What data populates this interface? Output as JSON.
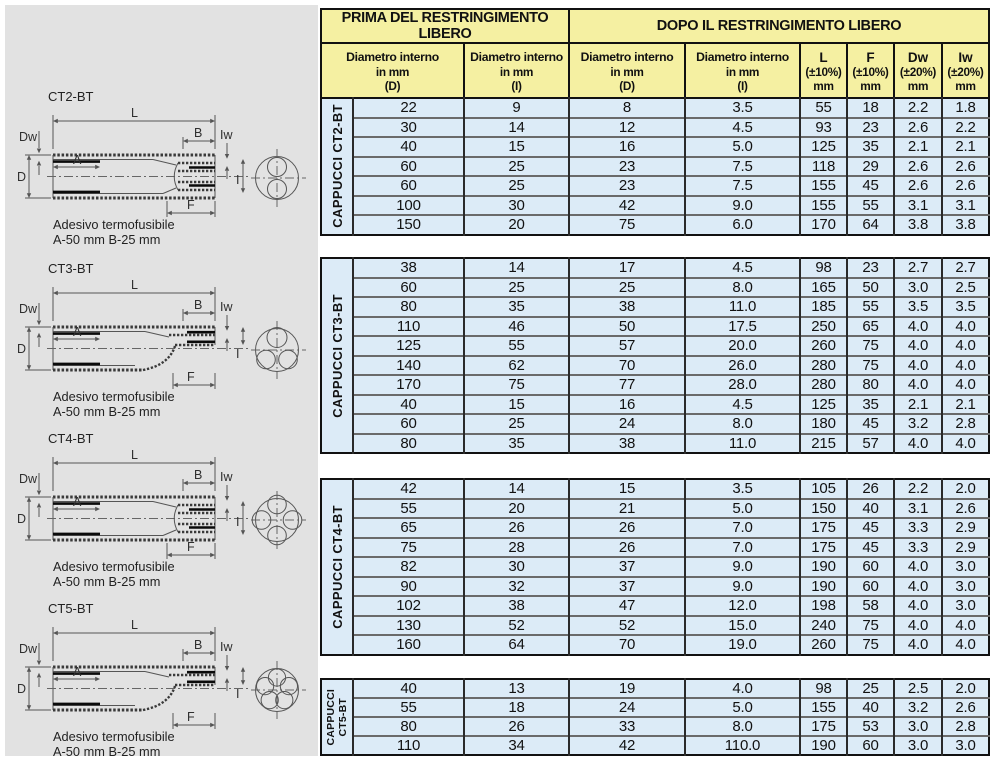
{
  "panel": {
    "bg": "#e2e2e2",
    "caption_line1": "Adesivo termofusibile",
    "caption_line2": "A-50 mm B-25 mm",
    "dims": {
      "L": "L",
      "Dw": "Dw",
      "A": "A",
      "B": "B",
      "Iw": "Iw",
      "D": "D",
      "I": "I",
      "F": "F"
    },
    "diagrams": [
      {
        "label": "CT2-BT",
        "cores": 2
      },
      {
        "label": "CT3-BT",
        "cores": 3
      },
      {
        "label": "CT4-BT",
        "cores": 4
      },
      {
        "label": "CT5-BT",
        "cores": 5
      }
    ]
  },
  "table": {
    "colors": {
      "header_bg": "#f5f0a2",
      "cell_bg": "#dcebf7",
      "row_line": "#6a6a6a",
      "border": "#111111"
    },
    "prima_label": "PRIMA DEL RESTRINGIMENTO LIBERO",
    "dopo_label": "DOPO IL RESTRINGIMENTO LIBERO",
    "columns": [
      {
        "l1": "Diametro interno",
        "l2": "in mm",
        "l3": "(D)"
      },
      {
        "l1": "Diametro interno",
        "l2": "in mm",
        "l3": "(I)"
      },
      {
        "l1": "Diametro interno",
        "l2": "in mm",
        "l3": "(D)"
      },
      {
        "l1": "Diametro interno",
        "l2": "in mm",
        "l3": "(I)"
      },
      {
        "l1": "L",
        "l2": "(±10%)",
        "l3": "mm"
      },
      {
        "l1": "F",
        "l2": "(±10%)",
        "l3": "mm"
      },
      {
        "l1": "Dw",
        "l2": "(±20%)",
        "l3": "mm"
      },
      {
        "l1": "Iw",
        "l2": "(±20%)",
        "l3": "mm"
      }
    ],
    "groups": [
      {
        "label_lines": [
          "CAPPUCCI CT2-BT"
        ],
        "rows": [
          [
            "22",
            "9",
            "8",
            "3.5",
            "55",
            "18",
            "2.2",
            "1.8"
          ],
          [
            "30",
            "14",
            "12",
            "4.5",
            "93",
            "23",
            "2.6",
            "2.2"
          ],
          [
            "40",
            "15",
            "16",
            "5.0",
            "125",
            "35",
            "2.1",
            "2.1"
          ],
          [
            "60",
            "25",
            "23",
            "7.5",
            "118",
            "29",
            "2.6",
            "2.6"
          ],
          [
            "60",
            "25",
            "23",
            "7.5",
            "155",
            "45",
            "2.6",
            "2.6"
          ],
          [
            "100",
            "30",
            "42",
            "9.0",
            "155",
            "55",
            "3.1",
            "3.1"
          ],
          [
            "150",
            "20",
            "75",
            "6.0",
            "170",
            "64",
            "3.8",
            "3.8"
          ]
        ]
      },
      {
        "label_lines": [
          "CAPPUCCI CT3-BT"
        ],
        "rows": [
          [
            "38",
            "14",
            "17",
            "4.5",
            "98",
            "23",
            "2.7",
            "2.7"
          ],
          [
            "60",
            "25",
            "25",
            "8.0",
            "165",
            "50",
            "3.0",
            "2.5"
          ],
          [
            "80",
            "35",
            "38",
            "11.0",
            "185",
            "55",
            "3.5",
            "3.5"
          ],
          [
            "110",
            "46",
            "50",
            "17.5",
            "250",
            "65",
            "4.0",
            "4.0"
          ],
          [
            "125",
            "55",
            "57",
            "20.0",
            "260",
            "75",
            "4.0",
            "4.0"
          ],
          [
            "140",
            "62",
            "70",
            "26.0",
            "280",
            "75",
            "4.0",
            "4.0"
          ],
          [
            "170",
            "75",
            "77",
            "28.0",
            "280",
            "80",
            "4.0",
            "4.0"
          ],
          [
            "40",
            "15",
            "16",
            "4.5",
            "125",
            "35",
            "2.1",
            "2.1"
          ],
          [
            "60",
            "25",
            "24",
            "8.0",
            "180",
            "45",
            "3.2",
            "2.8"
          ],
          [
            "80",
            "35",
            "38",
            "11.0",
            "215",
            "57",
            "4.0",
            "4.0"
          ]
        ]
      },
      {
        "label_lines": [
          "CAPPUCCI CT4-BT"
        ],
        "rows": [
          [
            "42",
            "14",
            "15",
            "3.5",
            "105",
            "26",
            "2.2",
            "2.0"
          ],
          [
            "55",
            "20",
            "21",
            "5.0",
            "150",
            "40",
            "3.1",
            "2.6"
          ],
          [
            "65",
            "26",
            "26",
            "7.0",
            "175",
            "45",
            "3.3",
            "2.9"
          ],
          [
            "75",
            "28",
            "26",
            "7.0",
            "175",
            "45",
            "3.3",
            "2.9"
          ],
          [
            "82",
            "30",
            "37",
            "9.0",
            "190",
            "60",
            "4.0",
            "3.0"
          ],
          [
            "90",
            "32",
            "37",
            "9.0",
            "190",
            "60",
            "4.0",
            "3.0"
          ],
          [
            "102",
            "38",
            "47",
            "12.0",
            "198",
            "58",
            "4.0",
            "3.0"
          ],
          [
            "130",
            "52",
            "52",
            "15.0",
            "240",
            "75",
            "4.0",
            "4.0"
          ],
          [
            "160",
            "64",
            "70",
            "19.0",
            "260",
            "75",
            "4.0",
            "4.0"
          ]
        ]
      },
      {
        "label_lines": [
          "CAPPUCCI",
          "CT5-BT"
        ],
        "rows": [
          [
            "40",
            "13",
            "19",
            "4.0",
            "98",
            "25",
            "2.5",
            "2.0"
          ],
          [
            "55",
            "18",
            "24",
            "5.0",
            "155",
            "40",
            "3.2",
            "2.6"
          ],
          [
            "80",
            "26",
            "33",
            "8.0",
            "175",
            "53",
            "3.0",
            "2.8"
          ],
          [
            "110",
            "34",
            "42",
            "110.0",
            "190",
            "60",
            "3.0",
            "3.0"
          ]
        ]
      }
    ]
  }
}
